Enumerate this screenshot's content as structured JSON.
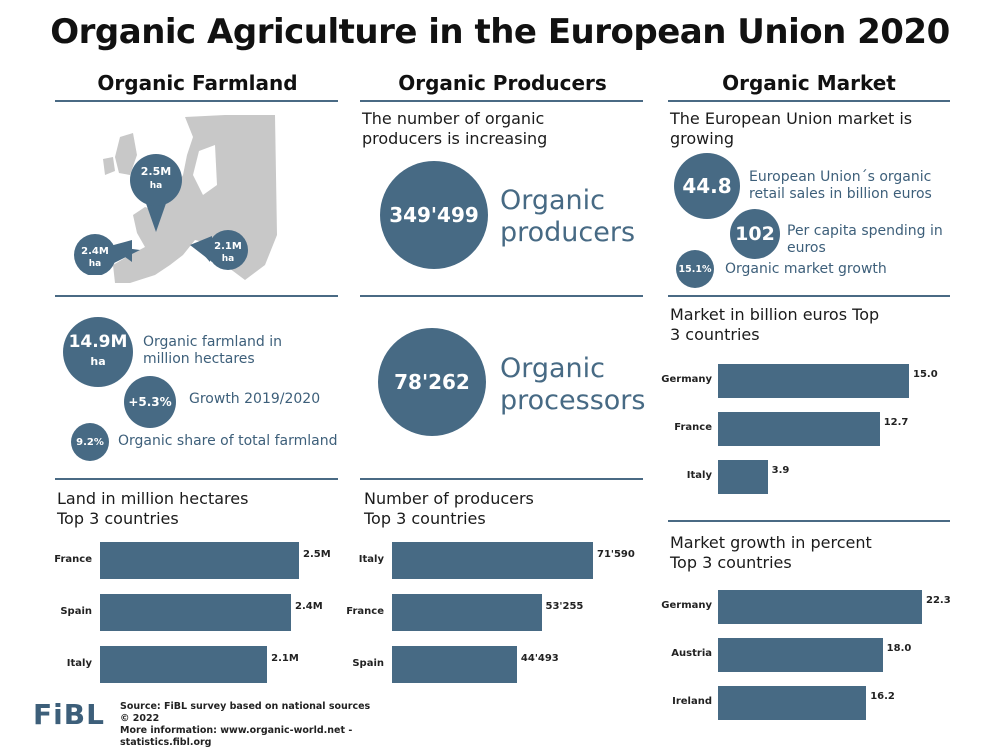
{
  "title": "Organic Agriculture in the European Union 2020",
  "colors": {
    "accent": "#476a84",
    "rule": "#4a6a84",
    "map_land": "#c8c8c8"
  },
  "farmland": {
    "heading": "Organic Farmland",
    "map_markers": [
      {
        "value": "2.5M",
        "unit": "ha"
      },
      {
        "value": "2.4M",
        "unit": "ha"
      },
      {
        "value": "2.1M",
        "unit": "ha"
      }
    ],
    "total": {
      "value": "14.9M",
      "unit": "ha",
      "caption": "Organic farmland in million hectares"
    },
    "growth": {
      "value": "+5.3%",
      "caption": "Growth 2019/2020"
    },
    "share": {
      "value": "9.2%",
      "caption": "Organic share of total farmland"
    },
    "top_title": "Land in million hectares Top 3 countries"
  },
  "producers": {
    "heading": "Organic Producers",
    "subtitle": "The number of organic producers is increasing",
    "producers_count": "349'499",
    "producers_label": "Organic producers",
    "processors_count": "78'262",
    "processors_label": "Organic processors",
    "top_title": "Number of producers Top 3 countries"
  },
  "market": {
    "heading": "Organic Market",
    "subtitle": "The European Union market is growing",
    "retail": {
      "value": "44.8",
      "caption": "European Union´s organic retail sales in billion euros"
    },
    "per_capita": {
      "value": "102",
      "caption": "Per capita spending in euros"
    },
    "growth": {
      "value": "15.1%",
      "caption": "Organic market growth"
    },
    "top_market_title": "Market in billion euros Top 3 countries",
    "top_growth_title": "Market growth in percent Top 3 countries"
  },
  "chart_data": [
    {
      "type": "bar",
      "orientation": "horizontal",
      "title": "Land in million hectares Top 3 countries",
      "categories": [
        "France",
        "Spain",
        "Italy"
      ],
      "values": [
        2.5,
        2.4,
        2.1
      ],
      "labels": [
        "2.5M",
        "2.4M",
        "2.1M"
      ]
    },
    {
      "type": "bar",
      "orientation": "horizontal",
      "title": "Number of producers Top 3 countries",
      "categories": [
        "Italy",
        "France",
        "Spain"
      ],
      "values": [
        71590,
        53255,
        44493
      ],
      "labels": [
        "71'590",
        "53'255",
        "44'493"
      ]
    },
    {
      "type": "bar",
      "orientation": "horizontal",
      "title": "Market in billion euros Top 3 countries",
      "categories": [
        "Germany",
        "France",
        "Italy"
      ],
      "values": [
        15.0,
        12.7,
        3.9
      ],
      "labels": [
        "15.0",
        "12.7",
        "3.9"
      ]
    },
    {
      "type": "bar",
      "orientation": "horizontal",
      "title": "Market growth in percent Top 3 countries",
      "categories": [
        "Germany",
        "Austria",
        "Ireland"
      ],
      "values": [
        22.3,
        18.0,
        16.2
      ],
      "labels": [
        "22.3",
        "18.0",
        "16.2"
      ]
    }
  ],
  "footer": {
    "logo": "FiBL",
    "source": "Source: FiBL survey based on national sources",
    "copyright": "© 2022",
    "more": "More information: www.organic-world.net - statistics.fibl.org"
  }
}
